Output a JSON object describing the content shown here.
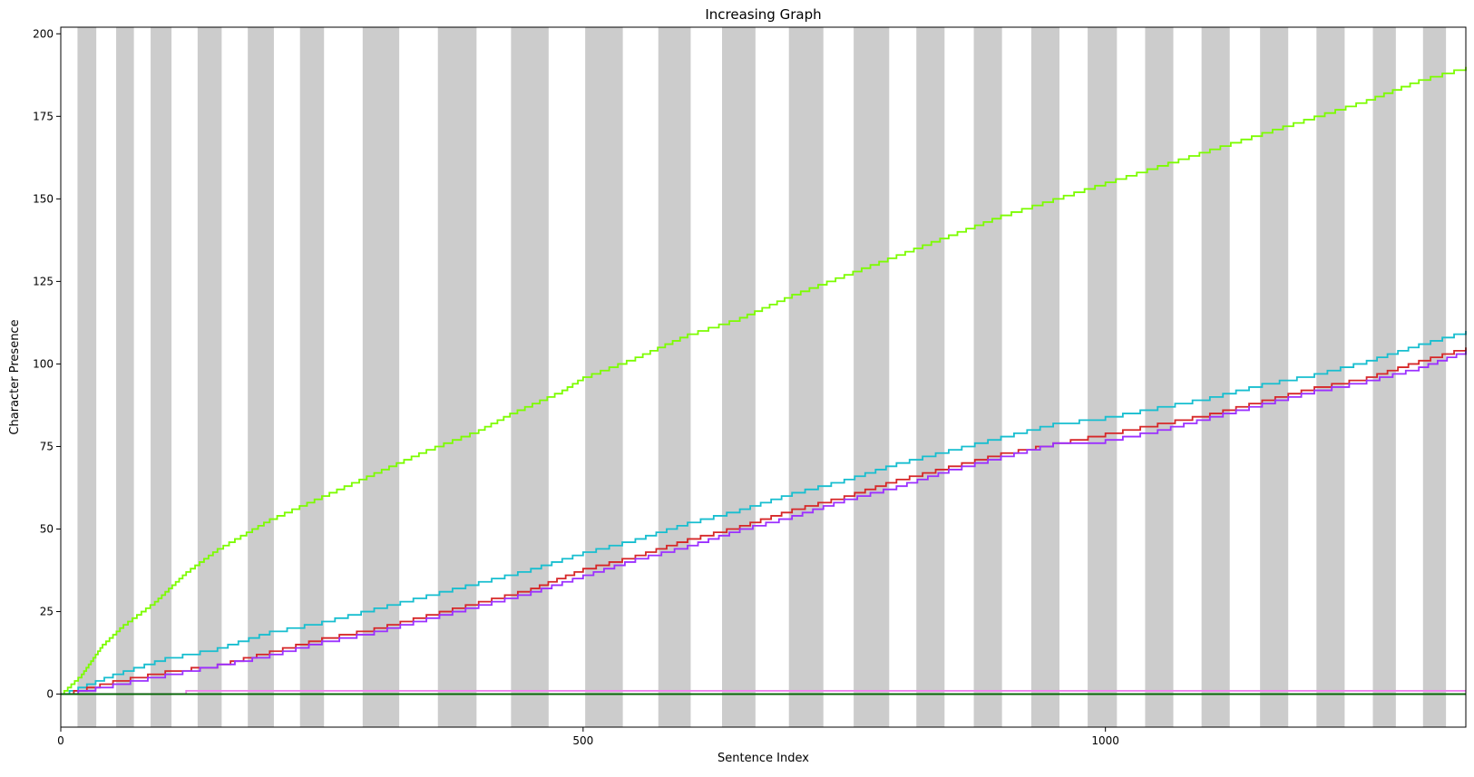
{
  "chart_data": {
    "type": "line",
    "title": "Increasing Graph",
    "xlabel": "Sentence Index",
    "ylabel": "Character Presence",
    "xlim": [
      0,
      1345
    ],
    "ylim": [
      -10,
      202
    ],
    "x_ticks": [
      0,
      500,
      1000
    ],
    "y_ticks": [
      0,
      25,
      50,
      75,
      100,
      125,
      150,
      175,
      200
    ],
    "grid": false,
    "legend": "none",
    "background_bands": {
      "color": "#cccccc",
      "spans": [
        [
          16,
          34
        ],
        [
          53,
          70
        ],
        [
          86,
          106
        ],
        [
          131,
          154
        ],
        [
          179,
          204
        ],
        [
          229,
          252
        ],
        [
          289,
          324
        ],
        [
          361,
          398
        ],
        [
          431,
          467
        ],
        [
          502,
          538
        ],
        [
          572,
          603
        ],
        [
          633,
          665
        ],
        [
          697,
          730
        ],
        [
          759,
          793
        ],
        [
          819,
          846
        ],
        [
          874,
          901
        ],
        [
          929,
          956
        ],
        [
          983,
          1011
        ],
        [
          1038,
          1065
        ],
        [
          1092,
          1119
        ],
        [
          1148,
          1175
        ],
        [
          1202,
          1229
        ],
        [
          1256,
          1278
        ],
        [
          1304,
          1326
        ]
      ]
    },
    "series": [
      {
        "color": "#7cfc00",
        "points": [
          [
            0,
            0
          ],
          [
            20,
            6
          ],
          [
            40,
            15
          ],
          [
            60,
            21
          ],
          [
            90,
            28
          ],
          [
            120,
            37
          ],
          [
            150,
            44
          ],
          [
            200,
            53
          ],
          [
            250,
            60
          ],
          [
            300,
            67
          ],
          [
            350,
            74
          ],
          [
            400,
            80
          ],
          [
            430,
            85
          ],
          [
            480,
            92
          ],
          [
            500,
            96
          ],
          [
            550,
            102
          ],
          [
            600,
            109
          ],
          [
            650,
            114
          ],
          [
            700,
            121
          ],
          [
            750,
            127
          ],
          [
            800,
            133
          ],
          [
            850,
            139
          ],
          [
            900,
            145
          ],
          [
            950,
            150
          ],
          [
            1000,
            155
          ],
          [
            1050,
            160
          ],
          [
            1100,
            165
          ],
          [
            1150,
            170
          ],
          [
            1200,
            175
          ],
          [
            1250,
            180
          ],
          [
            1300,
            186
          ],
          [
            1345,
            190
          ]
        ]
      },
      {
        "color": "#17becf",
        "points": [
          [
            0,
            0
          ],
          [
            50,
            6
          ],
          [
            100,
            11
          ],
          [
            150,
            14
          ],
          [
            200,
            19
          ],
          [
            250,
            22
          ],
          [
            300,
            26
          ],
          [
            350,
            30
          ],
          [
            400,
            34
          ],
          [
            450,
            38
          ],
          [
            500,
            43
          ],
          [
            550,
            47
          ],
          [
            600,
            52
          ],
          [
            650,
            56
          ],
          [
            700,
            61
          ],
          [
            750,
            65
          ],
          [
            800,
            70
          ],
          [
            850,
            74
          ],
          [
            900,
            78
          ],
          [
            950,
            82
          ],
          [
            1000,
            84
          ],
          [
            1050,
            87
          ],
          [
            1100,
            90
          ],
          [
            1150,
            94
          ],
          [
            1200,
            97
          ],
          [
            1250,
            101
          ],
          [
            1300,
            106
          ],
          [
            1345,
            110
          ]
        ]
      },
      {
        "color": "#d62728",
        "points": [
          [
            0,
            0
          ],
          [
            50,
            4
          ],
          [
            100,
            7
          ],
          [
            150,
            9
          ],
          [
            200,
            13
          ],
          [
            250,
            17
          ],
          [
            300,
            20
          ],
          [
            350,
            24
          ],
          [
            400,
            28
          ],
          [
            450,
            32
          ],
          [
            500,
            38
          ],
          [
            550,
            42
          ],
          [
            600,
            47
          ],
          [
            650,
            51
          ],
          [
            700,
            56
          ],
          [
            750,
            60
          ],
          [
            800,
            65
          ],
          [
            850,
            69
          ],
          [
            900,
            73
          ],
          [
            950,
            76
          ],
          [
            1000,
            79
          ],
          [
            1050,
            82
          ],
          [
            1100,
            85
          ],
          [
            1150,
            89
          ],
          [
            1200,
            93
          ],
          [
            1250,
            96
          ],
          [
            1300,
            101
          ],
          [
            1345,
            105
          ]
        ]
      },
      {
        "color": "#9b30ff",
        "points": [
          [
            0,
            0
          ],
          [
            50,
            3
          ],
          [
            100,
            6
          ],
          [
            150,
            9
          ],
          [
            200,
            12
          ],
          [
            250,
            16
          ],
          [
            300,
            19
          ],
          [
            350,
            23
          ],
          [
            400,
            27
          ],
          [
            450,
            31
          ],
          [
            500,
            36
          ],
          [
            550,
            41
          ],
          [
            600,
            45
          ],
          [
            650,
            50
          ],
          [
            700,
            54
          ],
          [
            750,
            59
          ],
          [
            800,
            63
          ],
          [
            850,
            68
          ],
          [
            900,
            72
          ],
          [
            950,
            76
          ],
          [
            1000,
            77
          ],
          [
            1050,
            80
          ],
          [
            1100,
            84
          ],
          [
            1150,
            88
          ],
          [
            1200,
            92
          ],
          [
            1250,
            95
          ],
          [
            1300,
            99
          ],
          [
            1345,
            104
          ]
        ]
      },
      {
        "color": "#ee82ee",
        "points": [
          [
            0,
            0
          ],
          [
            120,
            0
          ],
          [
            120,
            1
          ],
          [
            1345,
            1
          ]
        ]
      },
      {
        "color": "#006400",
        "points": [
          [
            0,
            0
          ],
          [
            1345,
            0
          ]
        ]
      }
    ]
  }
}
